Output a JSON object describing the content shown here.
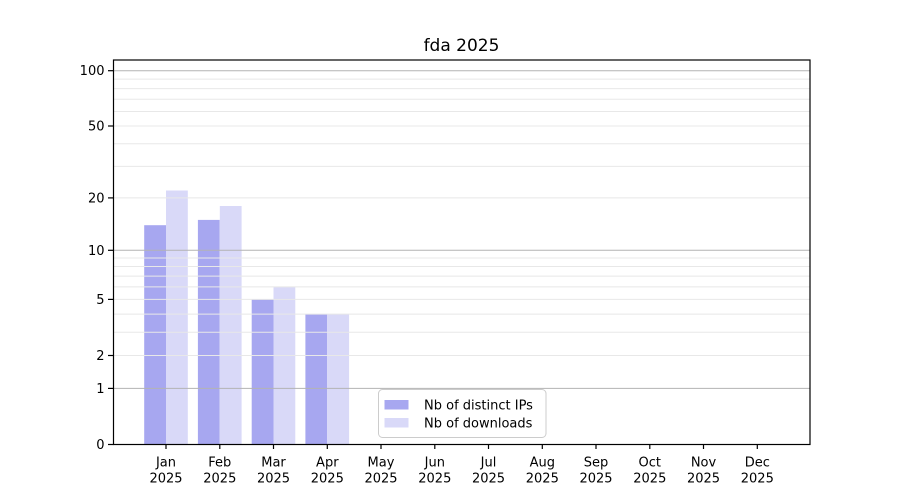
{
  "chart_data": {
    "type": "bar",
    "title": "fda 2025",
    "categories": [
      "Jan 2025",
      "Feb 2025",
      "Mar 2025",
      "Apr 2025",
      "May 2025",
      "Jun 2025",
      "Jul 2025",
      "Aug 2025",
      "Sep 2025",
      "Oct 2025",
      "Nov 2025",
      "Dec 2025"
    ],
    "series": [
      {
        "name": "Nb of distinct IPs",
        "color": "#a7a7f0",
        "values": [
          14,
          15,
          5,
          4,
          0,
          0,
          0,
          0,
          0,
          0,
          0,
          0
        ]
      },
      {
        "name": "Nb of downloads",
        "color": "#d9d9f8",
        "values": [
          22,
          18,
          6,
          4,
          0,
          0,
          0,
          0,
          0,
          0,
          0,
          0
        ]
      }
    ],
    "y_axis": {
      "scale": "log1p",
      "tick_labels": [
        "100",
        "50",
        "20",
        "10",
        "5",
        "2",
        "1",
        "0"
      ],
      "tick_values": [
        100,
        50,
        20,
        10,
        5,
        2,
        1,
        0
      ],
      "major_gridlines": [
        1,
        10,
        100
      ],
      "minor_gridlines": [
        2,
        3,
        4,
        5,
        6,
        7,
        8,
        9,
        20,
        30,
        40,
        50,
        60,
        70,
        80,
        90
      ],
      "range": [
        0,
        114
      ],
      "grid": "on"
    },
    "x_axis": {
      "tick_labels": [
        "Jan\n2025",
        "Feb\n2025",
        "Mar\n2025",
        "Apr\n2025",
        "May\n2025",
        "Jun\n2025",
        "Jul\n2025",
        "Aug\n2025",
        "Sep\n2025",
        "Oct\n2025",
        "Nov\n2025",
        "Dec\n2025"
      ]
    },
    "legend": {
      "position": "lower-center",
      "entries": [
        "Nb of distinct IPs",
        "Nb of downloads"
      ]
    },
    "colors": {
      "bar_distinct_ips": "#a7a7f0",
      "bar_downloads": "#d9d9f8",
      "grid_major": "#b3b3b3",
      "grid_minor": "#e8e8e8",
      "axis_frame": "#000000",
      "text": "#000000",
      "background": "#ffffff",
      "legend_border": "#cccccc"
    }
  }
}
